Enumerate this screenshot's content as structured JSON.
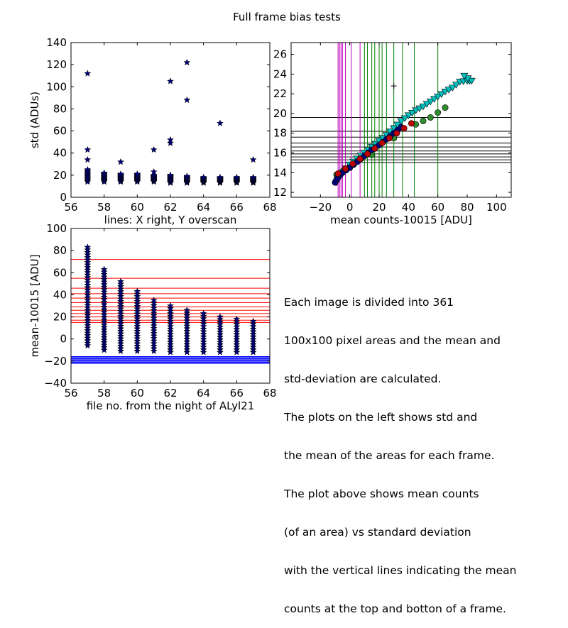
{
  "figure": {
    "suptitle": "Full frame bias tests",
    "annotation": [
      "Each image is divided into 361",
      "100x100 pixel areas and the mean and",
      "std-deviation are calculated.",
      "The plots on the left shows std and",
      "the mean of the areas for each frame.",
      "The plot above shows mean counts",
      "(of an area) vs standard deviation",
      "with the vertical lines indicating the mean",
      "counts at the top and botton of a frame."
    ]
  },
  "chart_data": [
    {
      "type": "scatter",
      "title": "",
      "xlabel": "lines: X right, Y overscan",
      "ylabel": "std (ADUs)",
      "xlim": [
        56,
        68
      ],
      "ylim": [
        0,
        140
      ],
      "xticks": [
        "56",
        "58",
        "60",
        "62",
        "64",
        "66",
        "68"
      ],
      "yticks": [
        "0",
        "20",
        "40",
        "60",
        "80",
        "100",
        "120",
        "140"
      ],
      "marker": "star",
      "color": "#00007f",
      "clusters": [
        {
          "x": 57,
          "ymin": 14,
          "ymax": 25
        },
        {
          "x": 58,
          "ymin": 14,
          "ymax": 22
        },
        {
          "x": 59,
          "ymin": 14,
          "ymax": 21
        },
        {
          "x": 60,
          "ymin": 14,
          "ymax": 21
        },
        {
          "x": 61,
          "ymin": 14,
          "ymax": 20
        },
        {
          "x": 62,
          "ymin": 13,
          "ymax": 20
        },
        {
          "x": 63,
          "ymin": 13,
          "ymax": 19
        },
        {
          "x": 64,
          "ymin": 13,
          "ymax": 18
        },
        {
          "x": 65,
          "ymin": 13,
          "ymax": 18
        },
        {
          "x": 66,
          "ymin": 13,
          "ymax": 18
        },
        {
          "x": 67,
          "ymin": 13,
          "ymax": 18
        }
      ],
      "outliers": [
        {
          "x": 57,
          "y": 112
        },
        {
          "x": 57,
          "y": 43
        },
        {
          "x": 57,
          "y": 34
        },
        {
          "x": 59,
          "y": 32
        },
        {
          "x": 61,
          "y": 43
        },
        {
          "x": 61,
          "y": 23
        },
        {
          "x": 62,
          "y": 105
        },
        {
          "x": 62,
          "y": 52
        },
        {
          "x": 62,
          "y": 49
        },
        {
          "x": 63,
          "y": 122
        },
        {
          "x": 63,
          "y": 88
        },
        {
          "x": 65,
          "y": 67
        },
        {
          "x": 67,
          "y": 34
        }
      ]
    },
    {
      "type": "scatter",
      "title": "",
      "xlabel": "mean counts-10015 [ADU]",
      "ylabel": "",
      "xlim": [
        -40,
        110
      ],
      "ylim": [
        11.5,
        27.2
      ],
      "xticks": [
        "−20",
        "0",
        "20",
        "40",
        "60",
        "80",
        "100"
      ],
      "yticks": [
        "12",
        "14",
        "16",
        "18",
        "20",
        "22",
        "24",
        "26"
      ],
      "vlines_magenta": [
        -8,
        -7,
        -6,
        -5,
        -3,
        1,
        7
      ],
      "vlines_green": [
        10,
        12,
        15,
        17,
        20,
        22,
        25,
        30,
        36,
        44,
        60
      ],
      "hlines_black": [
        15.0,
        15.3,
        15.6,
        15.9,
        16.2,
        16.6,
        17.0,
        17.6,
        18.2,
        19.6
      ],
      "series": [
        {
          "marker": "circle",
          "color": "#2e8b2e",
          "points": [
            [
              -9,
              13.8
            ],
            [
              0,
              14.6
            ],
            [
              15,
              15.8
            ],
            [
              30,
              17.5
            ],
            [
              45,
              18.9
            ],
            [
              55,
              19.6
            ],
            [
              65,
              20.6
            ]
          ]
        },
        {
          "marker": "triangle-down",
          "color": "#00bfbf",
          "points": [
            [
              -9,
              13.0
            ],
            [
              -8,
              13.4
            ],
            [
              -5,
              14.0
            ],
            [
              0,
              14.8
            ],
            [
              5,
              15.4
            ],
            [
              10,
              16.0
            ],
            [
              15,
              16.6
            ],
            [
              20,
              17.2
            ],
            [
              25,
              17.8
            ],
            [
              30,
              18.5
            ],
            [
              35,
              19.2
            ],
            [
              40,
              19.8
            ],
            [
              45,
              20.3
            ],
            [
              50,
              20.7
            ],
            [
              55,
              21.2
            ],
            [
              60,
              21.7
            ],
            [
              65,
              22.2
            ],
            [
              70,
              22.6
            ],
            [
              75,
              23.2
            ],
            [
              80,
              23.3
            ],
            [
              83,
              23.3
            ],
            [
              78,
              23.8
            ]
          ]
        },
        {
          "marker": "circle",
          "color": "#00007f",
          "points": [
            [
              -10,
              13.0
            ],
            [
              -8,
              13.5
            ],
            [
              -5,
              14.0
            ],
            [
              0,
              14.5
            ],
            [
              5,
              15.1
            ],
            [
              10,
              15.7
            ],
            [
              15,
              16.3
            ],
            [
              20,
              16.8
            ],
            [
              25,
              17.4
            ],
            [
              30,
              18.0
            ],
            [
              35,
              18.6
            ]
          ]
        },
        {
          "marker": "circle",
          "color": "#bf0000",
          "points": [
            [
              -8,
              13.9
            ],
            [
              2,
              14.9
            ],
            [
              12,
              15.9
            ],
            [
              22,
              17.0
            ],
            [
              32,
              18.0
            ],
            [
              42,
              19.0
            ]
          ]
        },
        {
          "marker": "plus",
          "color": "#000000",
          "points": [
            [
              30,
              22.8
            ]
          ]
        }
      ]
    },
    {
      "type": "scatter",
      "title": "",
      "xlabel": "file no. from the night of ALyl21",
      "ylabel": "mean-10015 [ADU]",
      "xlim": [
        56,
        68
      ],
      "ylim": [
        -40,
        100
      ],
      "xticks": [
        "56",
        "58",
        "60",
        "62",
        "64",
        "66",
        "68"
      ],
      "yticks": [
        "−40",
        "−20",
        "0",
        "20",
        "40",
        "60",
        "80",
        "100"
      ],
      "marker": "star",
      "color": "#00007f",
      "hlines_red": [
        15,
        17,
        20,
        23,
        26,
        29,
        33,
        37,
        41,
        46,
        55,
        72
      ],
      "hlines_blue": [
        -22,
        -21,
        -20,
        -19,
        -18,
        -17,
        -16
      ],
      "columns": [
        {
          "x": 57,
          "ymin": -6,
          "ymax": 83
        },
        {
          "x": 58,
          "ymin": -10,
          "ymax": 63
        },
        {
          "x": 59,
          "ymin": -11,
          "ymax": 52
        },
        {
          "x": 60,
          "ymin": -11,
          "ymax": 43
        },
        {
          "x": 61,
          "ymin": -11,
          "ymax": 35
        },
        {
          "x": 62,
          "ymin": -12,
          "ymax": 30
        },
        {
          "x": 63,
          "ymin": -12,
          "ymax": 26
        },
        {
          "x": 64,
          "ymin": -12,
          "ymax": 23
        },
        {
          "x": 65,
          "ymin": -12,
          "ymax": 20
        },
        {
          "x": 66,
          "ymin": -12,
          "ymax": 18
        },
        {
          "x": 67,
          "ymin": -12,
          "ymax": 16
        }
      ]
    }
  ]
}
